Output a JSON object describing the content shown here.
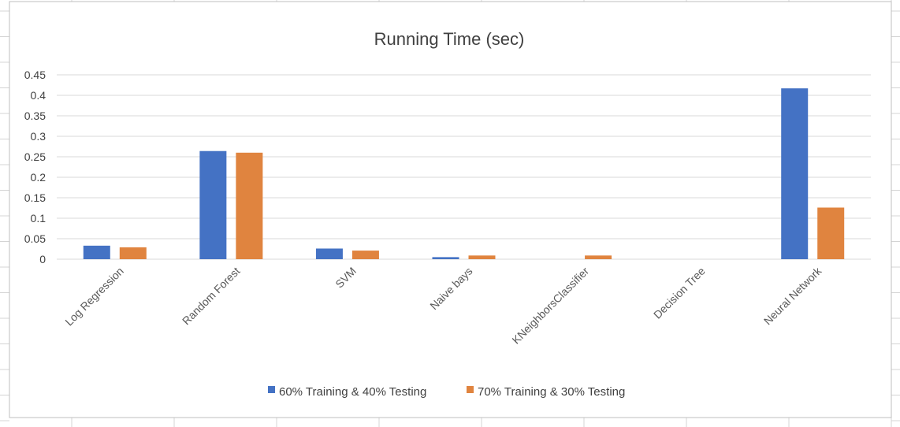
{
  "colors": {
    "series1": "#4472C4",
    "series2": "#E0843F",
    "gridline": "#D9D9D9",
    "sheet_grid": "#D4D4D4",
    "frame": "#BFBFBF"
  },
  "chart_data": {
    "type": "bar",
    "title": "Running Time (sec)",
    "xlabel": "",
    "ylabel": "",
    "ylim": [
      0,
      0.45
    ],
    "yticks": [
      0,
      0.05,
      0.1,
      0.15,
      0.2,
      0.25,
      0.3,
      0.35,
      0.4,
      0.45
    ],
    "ytick_labels": [
      "0",
      "0.05",
      "0.1",
      "0.15",
      "0.2",
      "0.25",
      "0.3",
      "0.35",
      "0.4",
      "0.45"
    ],
    "grid": true,
    "legend_position": "bottom",
    "categories": [
      "Log Regression",
      "Random Forest",
      "SVM",
      "Naive bays",
      "KNeighborsClassifier",
      "Decision Tree",
      "Neural Network"
    ],
    "series": [
      {
        "name": "60% Training & 40% Testing",
        "values": [
          0.033,
          0.264,
          0.026,
          0.005,
          0.0,
          0.0,
          0.417
        ]
      },
      {
        "name": "70% Training & 30% Testing",
        "values": [
          0.029,
          0.26,
          0.021,
          0.009,
          0.009,
          0.0,
          0.126
        ]
      }
    ]
  }
}
